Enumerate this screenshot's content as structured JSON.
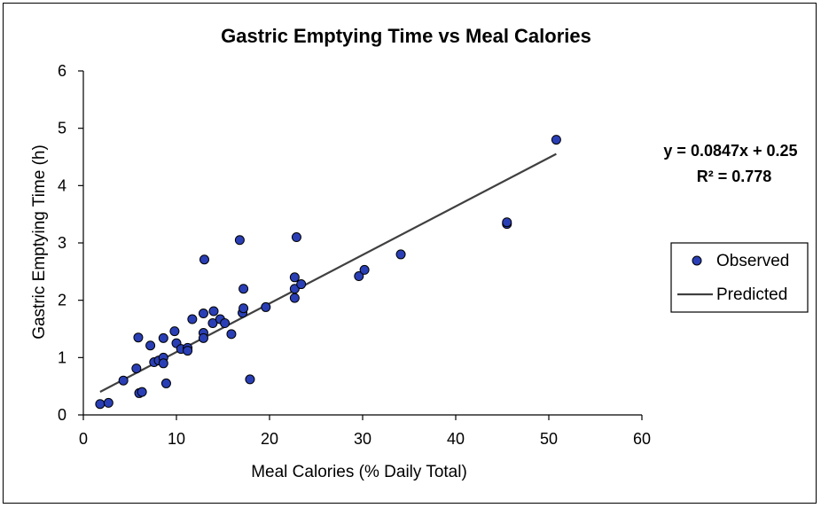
{
  "chart_data": {
    "type": "scatter",
    "title": "Gastric Emptying Time vs Meal Calories",
    "xlabel": "Meal Calories (% Daily Total)",
    "ylabel": "Gastric Emptying Time (h)",
    "xlim": [
      0,
      60
    ],
    "ylim": [
      0,
      6
    ],
    "xticks": [
      0,
      10,
      20,
      30,
      40,
      50,
      60
    ],
    "yticks": [
      0,
      1,
      2,
      3,
      4,
      5,
      6
    ],
    "grid": false,
    "legend_position": "right",
    "series": [
      {
        "name": "Observed",
        "kind": "scatter",
        "color": "#2a3fb5",
        "edge_color": "#000000",
        "points": [
          [
            1.8,
            0.19
          ],
          [
            2.7,
            0.21
          ],
          [
            4.3,
            0.6
          ],
          [
            5.7,
            0.81
          ],
          [
            5.9,
            1.35
          ],
          [
            6.0,
            0.38
          ],
          [
            6.3,
            0.4
          ],
          [
            7.2,
            1.21
          ],
          [
            7.6,
            0.92
          ],
          [
            8.1,
            0.95
          ],
          [
            8.6,
            1.0
          ],
          [
            8.6,
            0.9
          ],
          [
            8.6,
            1.34
          ],
          [
            8.9,
            0.55
          ],
          [
            9.8,
            1.46
          ],
          [
            10.0,
            1.25
          ],
          [
            10.5,
            1.15
          ],
          [
            11.2,
            1.17
          ],
          [
            11.2,
            1.12
          ],
          [
            11.7,
            1.67
          ],
          [
            12.9,
            1.77
          ],
          [
            12.9,
            1.43
          ],
          [
            12.9,
            1.34
          ],
          [
            13.0,
            2.71
          ],
          [
            13.9,
            1.6
          ],
          [
            14.0,
            1.81
          ],
          [
            14.7,
            1.67
          ],
          [
            15.2,
            1.6
          ],
          [
            15.9,
            1.41
          ],
          [
            16.8,
            3.05
          ],
          [
            17.1,
            1.78
          ],
          [
            17.2,
            2.2
          ],
          [
            17.2,
            1.86
          ],
          [
            17.9,
            0.62
          ],
          [
            19.6,
            1.88
          ],
          [
            22.7,
            2.4
          ],
          [
            22.7,
            2.2
          ],
          [
            22.7,
            2.04
          ],
          [
            22.9,
            3.1
          ],
          [
            23.4,
            2.28
          ],
          [
            29.6,
            2.42
          ],
          [
            30.2,
            2.53
          ],
          [
            34.1,
            2.8
          ],
          [
            45.5,
            3.33
          ],
          [
            45.5,
            3.36
          ],
          [
            50.8,
            4.8
          ]
        ]
      },
      {
        "name": "Predicted",
        "kind": "line",
        "color": "#404040",
        "slope": 0.0847,
        "intercept": 0.25,
        "x_range": [
          1.8,
          50.8
        ]
      }
    ],
    "annotation": {
      "equation": "y = 0.0847x + 0.25",
      "r_squared": "R² = 0.778"
    }
  }
}
